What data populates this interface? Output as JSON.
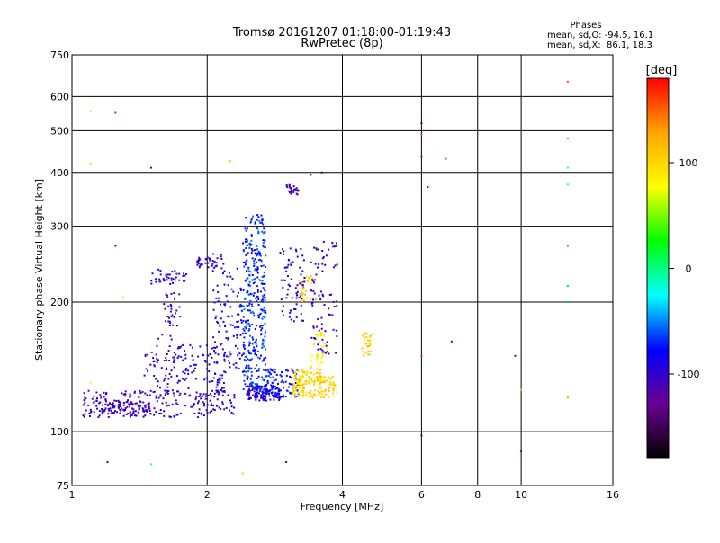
{
  "chart_data": {
    "type": "scatter",
    "title": "Tromsø 20161207 01:18:00-01:19:43",
    "subtitle": "RwPretec (8p)",
    "xlabel": "Frequency [MHz]",
    "ylabel": "Stationary phase Virtual Height [km]",
    "x_scale": "log",
    "y_scale": "log",
    "xlim": [
      1,
      16
    ],
    "ylim": [
      75,
      750
    ],
    "x_ticks": [
      1,
      2,
      4,
      6,
      8,
      10,
      16
    ],
    "x_tick_labels": [
      "1",
      "2",
      "4",
      "6",
      "8",
      "10",
      "16"
    ],
    "y_ticks": [
      75,
      100,
      200,
      300,
      400,
      500,
      600,
      750
    ],
    "y_tick_labels": [
      "75",
      "100",
      "200",
      "300",
      "400",
      "500",
      "600",
      "750"
    ],
    "grid": true,
    "phase_info": {
      "heading": "Phases",
      "line_o": "mean, sd,O: -94.5, 16.1",
      "line_x": "mean, sd,X:  86.1, 18.3"
    },
    "colorbar": {
      "label": "[deg]",
      "range": [
        -180,
        180
      ],
      "tick_values": [
        100,
        0,
        -100
      ],
      "tick_labels": [
        "100",
        "0",
        "-100"
      ],
      "colors": [
        "#000000",
        "#6a0090",
        "#0000ff",
        "#00ffff",
        "#00ff00",
        "#ffff00",
        "#ffa500",
        "#ff0000"
      ]
    },
    "clusters": [
      {
        "f0": 1.05,
        "f1": 2.3,
        "h0": 108,
        "h1": 125,
        "n": 220,
        "phase": -100
      },
      {
        "f0": 1.1,
        "f1": 1.5,
        "h0": 110,
        "h1": 118,
        "n": 80,
        "phase": -110
      },
      {
        "f0": 1.45,
        "f1": 1.7,
        "h0": 120,
        "h1": 170,
        "n": 60,
        "phase": -105
      },
      {
        "f0": 1.5,
        "f1": 1.8,
        "h0": 220,
        "h1": 240,
        "n": 40,
        "phase": -100
      },
      {
        "f0": 1.6,
        "f1": 1.75,
        "h0": 175,
        "h1": 210,
        "n": 30,
        "phase": -105
      },
      {
        "f0": 1.7,
        "f1": 2.2,
        "h0": 120,
        "h1": 160,
        "n": 80,
        "phase": -95
      },
      {
        "f0": 1.9,
        "f1": 2.1,
        "h0": 240,
        "h1": 255,
        "n": 30,
        "phase": -100
      },
      {
        "f0": 2.05,
        "f1": 2.2,
        "h0": 130,
        "h1": 260,
        "n": 60,
        "phase": -95
      },
      {
        "f0": 2.2,
        "f1": 2.4,
        "h0": 140,
        "h1": 240,
        "n": 60,
        "phase": -90
      },
      {
        "f0": 2.4,
        "f1": 2.7,
        "h0": 125,
        "h1": 320,
        "n": 350,
        "phase": -70
      },
      {
        "f0": 2.45,
        "f1": 2.9,
        "h0": 118,
        "h1": 128,
        "n": 120,
        "phase": -90
      },
      {
        "f0": 2.7,
        "f1": 3.2,
        "h0": 120,
        "h1": 140,
        "n": 100,
        "phase": -80
      },
      {
        "f0": 2.9,
        "f1": 3.3,
        "h0": 180,
        "h1": 270,
        "n": 70,
        "phase": -95
      },
      {
        "f0": 3.0,
        "f1": 3.2,
        "h0": 355,
        "h1": 375,
        "n": 25,
        "phase": -110
      },
      {
        "f0": 3.1,
        "f1": 3.6,
        "h0": 120,
        "h1": 140,
        "n": 120,
        "phase": 100
      },
      {
        "f0": 3.2,
        "f1": 3.5,
        "h0": 200,
        "h1": 230,
        "n": 30,
        "phase": 110
      },
      {
        "f0": 3.4,
        "f1": 3.7,
        "h0": 140,
        "h1": 175,
        "n": 40,
        "phase": 90
      },
      {
        "f0": 3.4,
        "f1": 3.9,
        "h0": 150,
        "h1": 280,
        "n": 80,
        "phase": -100
      },
      {
        "f0": 3.5,
        "f1": 3.9,
        "h0": 120,
        "h1": 135,
        "n": 60,
        "phase": 100
      },
      {
        "f0": 4.4,
        "f1": 4.7,
        "h0": 150,
        "h1": 170,
        "n": 30,
        "phase": 105
      }
    ],
    "outliers": [
      {
        "x": 1.1,
        "y": 555,
        "phase": 110
      },
      {
        "x": 1.25,
        "y": 550,
        "phase": 170
      },
      {
        "x": 1.1,
        "y": 420,
        "phase": 60
      },
      {
        "x": 1.5,
        "y": 410,
        "phase": -105
      },
      {
        "x": 1.25,
        "y": 270,
        "phase": -110
      },
      {
        "x": 1.3,
        "y": 205,
        "phase": 60
      },
      {
        "x": 1.1,
        "y": 130,
        "phase": 70
      },
      {
        "x": 1.2,
        "y": 85,
        "phase": -105
      },
      {
        "x": 1.5,
        "y": 84,
        "phase": -20
      },
      {
        "x": 2.25,
        "y": 425,
        "phase": 110
      },
      {
        "x": 2.4,
        "y": 80,
        "phase": 110
      },
      {
        "x": 3.0,
        "y": 85,
        "phase": -105
      },
      {
        "x": 3.4,
        "y": 395,
        "phase": -105
      },
      {
        "x": 3.6,
        "y": 400,
        "phase": -100
      },
      {
        "x": 6.0,
        "y": 520,
        "phase": -90
      },
      {
        "x": 6.0,
        "y": 490,
        "phase": 160
      },
      {
        "x": 6.0,
        "y": 435,
        "phase": -70
      },
      {
        "x": 6.2,
        "y": 370,
        "phase": 180
      },
      {
        "x": 6.8,
        "y": 430,
        "phase": 150
      },
      {
        "x": 6.0,
        "y": 150,
        "phase": 170
      },
      {
        "x": 6.0,
        "y": 98,
        "phase": -90
      },
      {
        "x": 7.0,
        "y": 162,
        "phase": -120
      },
      {
        "x": 9.7,
        "y": 150,
        "phase": -70
      },
      {
        "x": 10.0,
        "y": 90,
        "phase": -120
      },
      {
        "x": 10.0,
        "y": 125,
        "phase": 120
      },
      {
        "x": 12.7,
        "y": 650,
        "phase": 160
      },
      {
        "x": 12.7,
        "y": 480,
        "phase": -40
      },
      {
        "x": 12.7,
        "y": 375,
        "phase": -20
      },
      {
        "x": 12.7,
        "y": 410,
        "phase": -20
      },
      {
        "x": 12.7,
        "y": 270,
        "phase": -40
      },
      {
        "x": 12.7,
        "y": 218,
        "phase": -40
      },
      {
        "x": 12.7,
        "y": 200,
        "phase": -40
      },
      {
        "x": 12.7,
        "y": 120,
        "phase": 40
      }
    ]
  }
}
